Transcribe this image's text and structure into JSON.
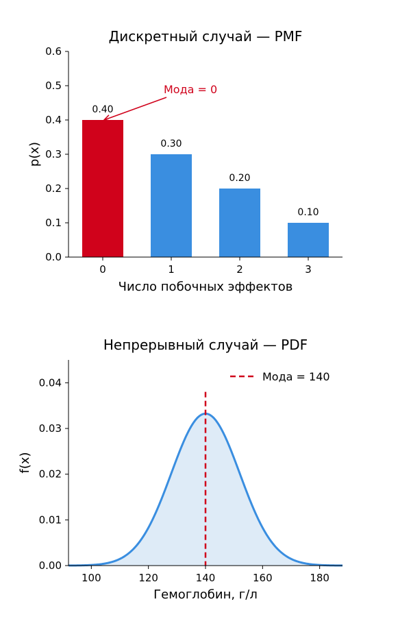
{
  "chart_data": [
    {
      "type": "bar",
      "title": "Дискретный случай — PMF",
      "xlabel": "Число побочных эффектов",
      "ylabel": "p(x)",
      "categories": [
        "0",
        "1",
        "2",
        "3"
      ],
      "values": [
        0.4,
        0.3,
        0.2,
        0.1
      ],
      "data_labels": [
        "0.40",
        "0.30",
        "0.20",
        "0.10"
      ],
      "bar_colors": [
        "#d0021b",
        "#3a8ee0",
        "#3a8ee0",
        "#3a8ee0"
      ],
      "ylim": [
        0,
        0.6
      ],
      "yticks": [
        0.0,
        0.1,
        0.2,
        0.3,
        0.4,
        0.5,
        0.6
      ],
      "ytick_labels": [
        "0.0",
        "0.1",
        "0.2",
        "0.3",
        "0.4",
        "0.5",
        "0.6"
      ],
      "annotation": {
        "text": "Мода = 0",
        "target_x": "0",
        "target_y": 0.4,
        "color": "#d0021b"
      },
      "grid": false
    },
    {
      "type": "area",
      "title": "Непрерывный случай — PDF",
      "xlabel": "Гемоглобин, г/л",
      "ylabel": "f(x)",
      "distribution": {
        "kind": "normal",
        "mean": 140,
        "sd": 12
      },
      "xlim": [
        92,
        188
      ],
      "ylim": [
        0,
        0.045
      ],
      "xticks": [
        100,
        120,
        140,
        160,
        180
      ],
      "xtick_labels": [
        "100",
        "120",
        "140",
        "160",
        "180"
      ],
      "yticks": [
        0.0,
        0.01,
        0.02,
        0.03,
        0.04
      ],
      "ytick_labels": [
        "0.00",
        "0.01",
        "0.02",
        "0.03",
        "0.04"
      ],
      "line_color": "#3a8ee0",
      "fill_color": "#deebf7",
      "mode": {
        "x": 140,
        "label": "Мода = 140",
        "color": "#d0021b"
      },
      "legend_position": "top-right",
      "grid": false
    }
  ]
}
